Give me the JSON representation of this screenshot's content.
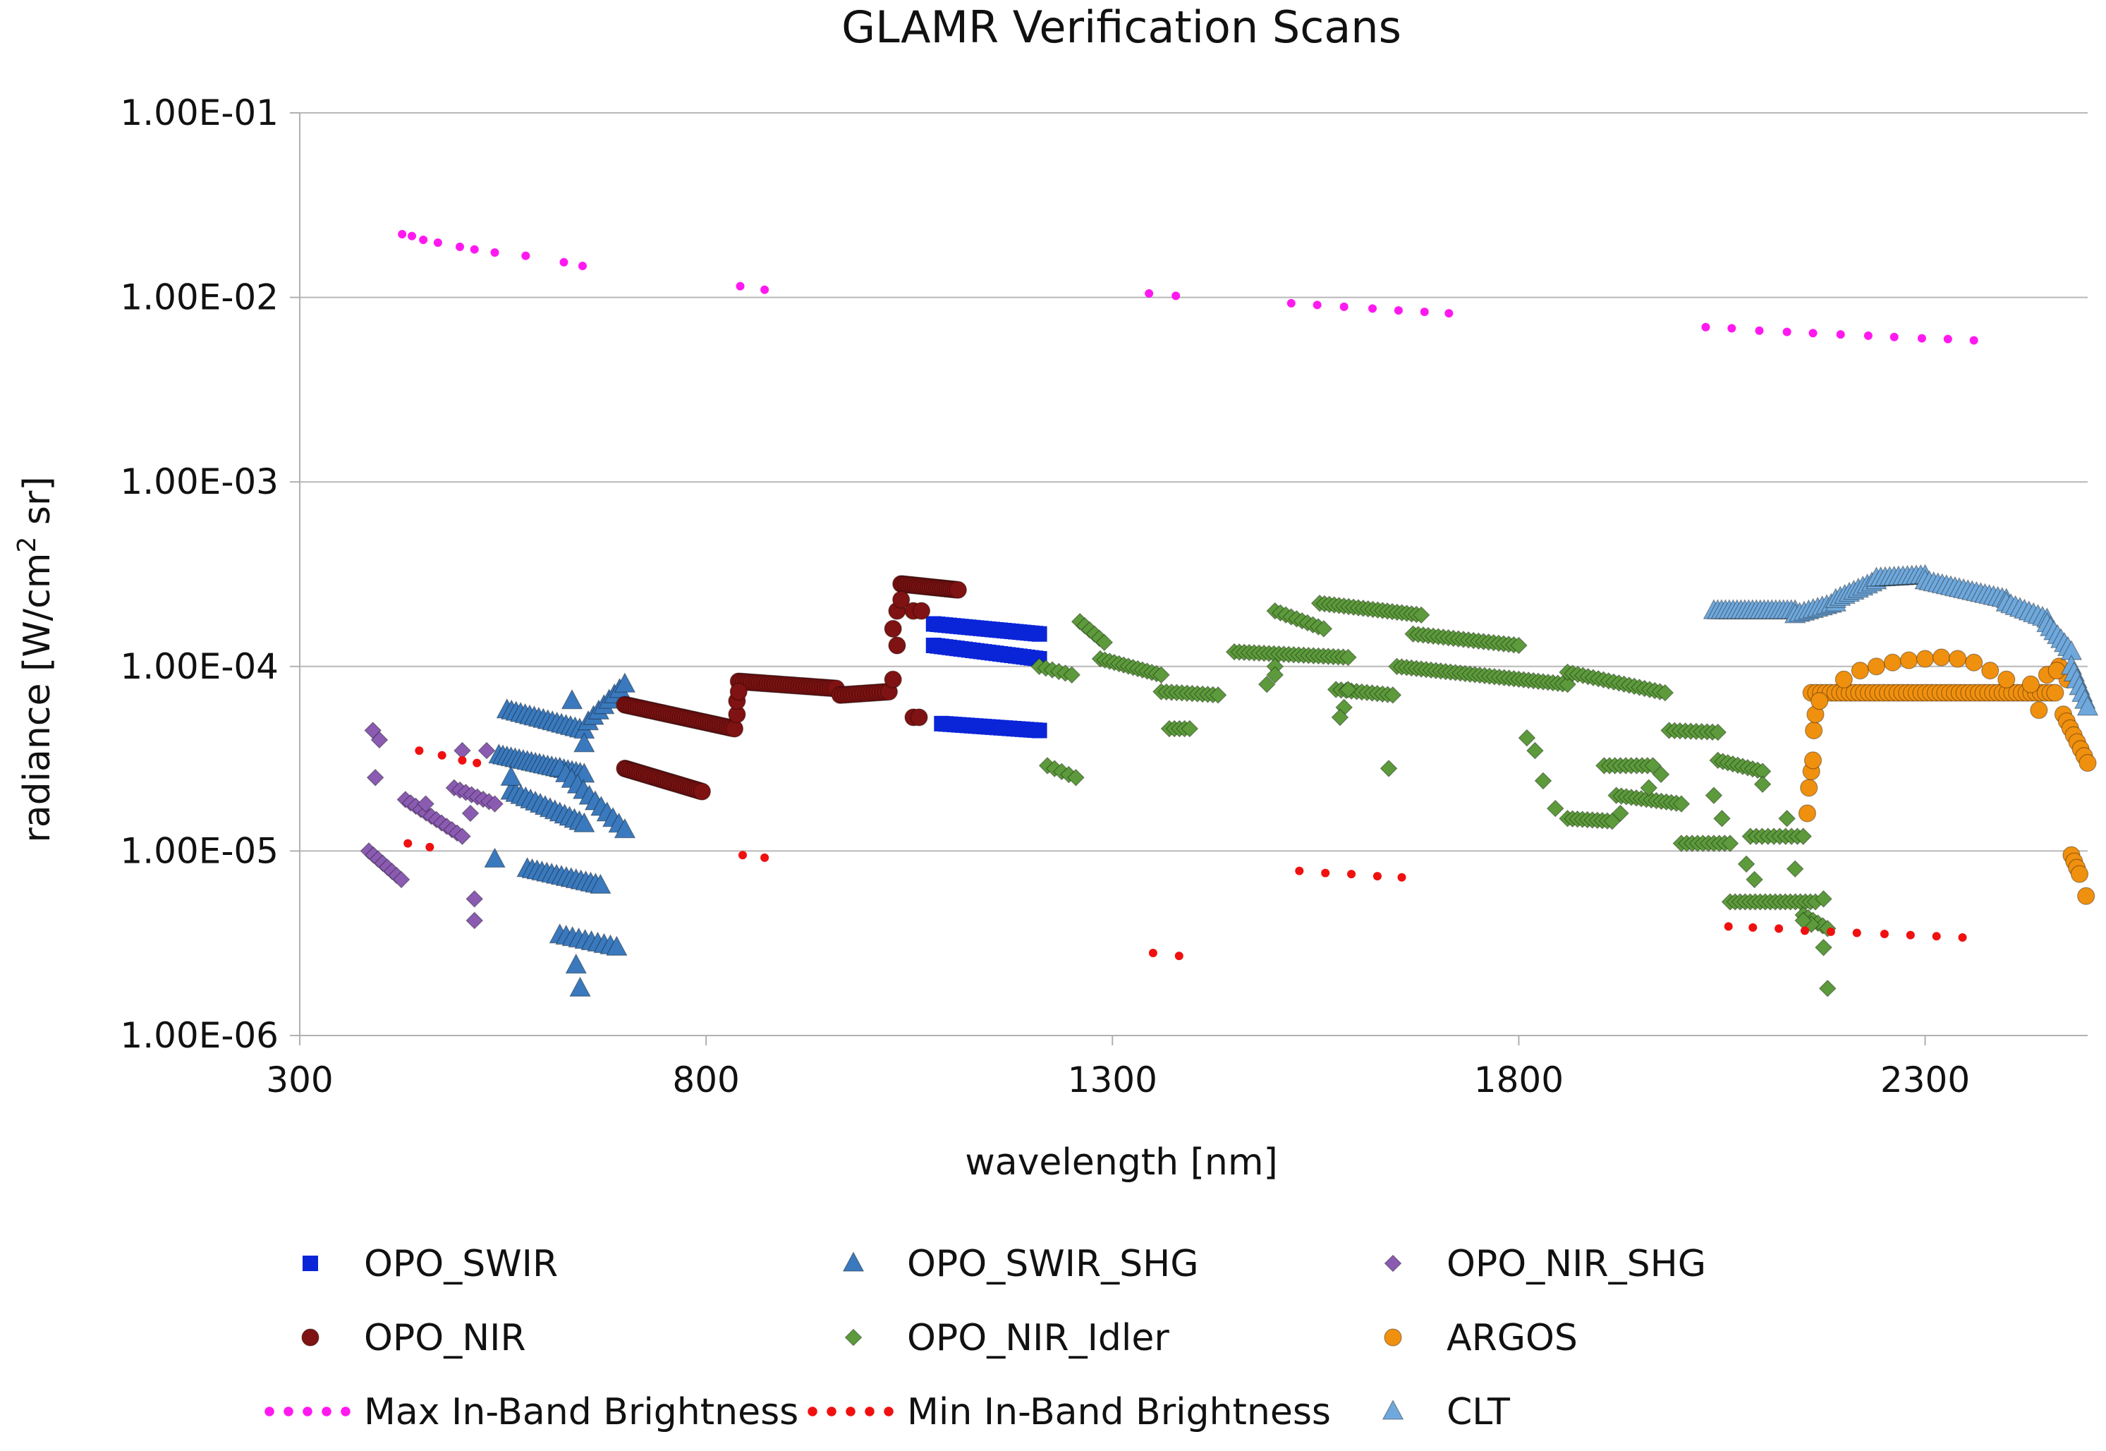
{
  "chart_data": {
    "type": "scatter",
    "title": "GLAMR Verification Scans",
    "xlabel": "wavelength [nm]",
    "ylabel": {
      "main": "radiance [W/cm",
      "sup": "2",
      "tail": " sr]"
    },
    "xlim": [
      300,
      2500
    ],
    "ylim": [
      1e-06,
      0.1
    ],
    "yscale": "log",
    "x_ticks": [
      300,
      800,
      1300,
      1800,
      2300
    ],
    "x_tick_labels": [
      "300",
      "800",
      "1300",
      "1800",
      "2300"
    ],
    "y_ticks": [
      1e-06,
      1e-05,
      0.0001,
      0.001,
      0.01,
      0.1
    ],
    "y_tick_labels": [
      "1.00E-06",
      "1.00E-05",
      "1.00E-04",
      "1.00E-03",
      "1.00E-02",
      "1.00E-01"
    ],
    "grid": "horizontal",
    "legend_position": "bottom",
    "series": [
      {
        "name": "OPO_SWIR",
        "marker": "square",
        "color": "#0a25d8",
        "segments": [
          {
            "x0": 1080,
            "x1": 1210,
            "y0": 0.00017,
            "y1": 0.00015,
            "n": 28
          },
          {
            "x0": 1080,
            "x1": 1210,
            "y0": 0.00013,
            "y1": 0.00011,
            "n": 28
          },
          {
            "x0": 1090,
            "x1": 1210,
            "y0": 4.9e-05,
            "y1": 4.5e-05,
            "n": 24
          }
        ]
      },
      {
        "name": "OPO_SWIR_SHG",
        "marker": "triangle",
        "color": "#3a79bd",
        "segments": [
          {
            "x0": 555,
            "x1": 650,
            "y0": 5.8e-05,
            "y1": 4.5e-05,
            "n": 18
          },
          {
            "x0": 545,
            "x1": 650,
            "y0": 3.3e-05,
            "y1": 2.6e-05,
            "n": 22
          },
          {
            "x0": 560,
            "x1": 650,
            "y0": 2.1e-05,
            "y1": 1.4e-05,
            "n": 16
          },
          {
            "x0": 580,
            "x1": 670,
            "y0": 8e-06,
            "y1": 6.5e-06,
            "n": 16
          },
          {
            "x0": 620,
            "x1": 690,
            "y0": 3.5e-06,
            "y1": 3e-06,
            "n": 10
          },
          {
            "x0": 620,
            "x1": 700,
            "y0": 2.8e-05,
            "y1": 1.3e-05,
            "n": 12
          },
          {
            "x0": 655,
            "x1": 700,
            "y0": 5e-05,
            "y1": 8e-05,
            "n": 8
          }
        ],
        "points": [
          [
            635,
            6.5e-05
          ],
          [
            560,
            2.5e-05
          ],
          [
            540,
            9e-06
          ],
          [
            640,
            2.4e-06
          ],
          [
            645,
            1.8e-06
          ],
          [
            650,
            3.8e-05
          ]
        ]
      },
      {
        "name": "OPO_NIR_SHG",
        "marker": "diamond",
        "color": "#8a5bb1",
        "segments": [
          {
            "x0": 385,
            "x1": 425,
            "y0": 1e-05,
            "y1": 7e-06,
            "n": 8
          },
          {
            "x0": 430,
            "x1": 500,
            "y0": 1.9e-05,
            "y1": 1.2e-05,
            "n": 12
          },
          {
            "x0": 490,
            "x1": 540,
            "y0": 2.2e-05,
            "y1": 1.8e-05,
            "n": 8
          }
        ],
        "points": [
          [
            390,
            4.5e-05
          ],
          [
            398,
            4e-05
          ],
          [
            393,
            2.5e-05
          ],
          [
            500,
            3.5e-05
          ],
          [
            515,
            5.5e-06
          ],
          [
            515,
            4.2e-06
          ],
          [
            530,
            3.5e-05
          ],
          [
            510,
            1.6e-05
          ],
          [
            455,
            1.8e-05
          ]
        ]
      },
      {
        "name": "OPO_NIR",
        "marker": "circle",
        "color": "#7f1212",
        "segments": [
          {
            "x0": 700,
            "x1": 835,
            "y0": 6.2e-05,
            "y1": 4.6e-05,
            "n": 48
          },
          {
            "x0": 700,
            "x1": 795,
            "y0": 2.8e-05,
            "y1": 2.1e-05,
            "n": 36
          },
          {
            "x0": 840,
            "x1": 960,
            "y0": 8.3e-05,
            "y1": 7.6e-05,
            "n": 38
          },
          {
            "x0": 965,
            "x1": 1025,
            "y0": 7e-05,
            "y1": 7.3e-05,
            "n": 18
          },
          {
            "x0": 1040,
            "x1": 1110,
            "y0": 0.00028,
            "y1": 0.00026,
            "n": 28
          }
        ],
        "points": [
          [
            838,
            5.5e-05
          ],
          [
            838,
            6.5e-05
          ],
          [
            840,
            7.3e-05
          ],
          [
            1030,
            8.5e-05
          ],
          [
            1035,
            0.00013
          ],
          [
            1030,
            0.00016
          ],
          [
            1035,
            0.0002
          ],
          [
            1040,
            0.00023
          ],
          [
            1055,
            0.0002
          ],
          [
            1065,
            0.0002
          ],
          [
            1055,
            5.3e-05
          ],
          [
            1062,
            5.3e-05
          ]
        ]
      },
      {
        "name": "OPO_NIR_Idler",
        "marker": "diamond",
        "color": "#5c9a3b",
        "segments": [
          {
            "x0": 1210,
            "x1": 1250,
            "y0": 0.0001,
            "y1": 9e-05,
            "n": 6
          },
          {
            "x0": 1260,
            "x1": 1290,
            "y0": 0.000175,
            "y1": 0.000135,
            "n": 6
          },
          {
            "x0": 1285,
            "x1": 1360,
            "y0": 0.00011,
            "y1": 9e-05,
            "n": 14
          },
          {
            "x0": 1360,
            "x1": 1430,
            "y0": 7.3e-05,
            "y1": 7e-05,
            "n": 12
          },
          {
            "x0": 1450,
            "x1": 1590,
            "y0": 0.00012,
            "y1": 0.000112,
            "n": 24
          },
          {
            "x0": 1500,
            "x1": 1560,
            "y0": 0.0002,
            "y1": 0.00016,
            "n": 10
          },
          {
            "x0": 1555,
            "x1": 1680,
            "y0": 0.00022,
            "y1": 0.00019,
            "n": 22
          },
          {
            "x0": 1670,
            "x1": 1800,
            "y0": 0.00015,
            "y1": 0.00013,
            "n": 22
          },
          {
            "x0": 1650,
            "x1": 1860,
            "y0": 0.0001,
            "y1": 8e-05,
            "n": 36
          },
          {
            "x0": 1860,
            "x1": 1980,
            "y0": 9.3e-05,
            "y1": 7.2e-05,
            "n": 20
          },
          {
            "x0": 1575,
            "x1": 1645,
            "y0": 7.5e-05,
            "y1": 7e-05,
            "n": 12
          },
          {
            "x0": 1985,
            "x1": 2045,
            "y0": 4.5e-05,
            "y1": 4.4e-05,
            "n": 10
          },
          {
            "x0": 2045,
            "x1": 2100,
            "y0": 3.1e-05,
            "y1": 2.7e-05,
            "n": 10
          },
          {
            "x0": 1905,
            "x1": 1965,
            "y0": 2.9e-05,
            "y1": 2.9e-05,
            "n": 10
          },
          {
            "x0": 1920,
            "x1": 2000,
            "y0": 2e-05,
            "y1": 1.8e-05,
            "n": 14
          },
          {
            "x0": 1860,
            "x1": 1915,
            "y0": 1.5e-05,
            "y1": 1.45e-05,
            "n": 10
          },
          {
            "x0": 2000,
            "x1": 2060,
            "y0": 1.1e-05,
            "y1": 1.1e-05,
            "n": 10
          },
          {
            "x0": 2085,
            "x1": 2150,
            "y0": 1.2e-05,
            "y1": 1.2e-05,
            "n": 10
          },
          {
            "x0": 2060,
            "x1": 2165,
            "y0": 5.3e-06,
            "y1": 5.3e-06,
            "n": 18
          },
          {
            "x0": 2150,
            "x1": 2180,
            "y0": 4.5e-06,
            "y1": 3.8e-06,
            "n": 6
          },
          {
            "x0": 1370,
            "x1": 1395,
            "y0": 4.6e-05,
            "y1": 4.6e-05,
            "n": 5
          },
          {
            "x0": 1220,
            "x1": 1255,
            "y0": 2.9e-05,
            "y1": 2.5e-05,
            "n": 5
          }
        ],
        "points": [
          [
            1500,
            0.0001
          ],
          [
            1490,
            8e-05
          ],
          [
            1500,
            9e-05
          ],
          [
            1590,
            7.5e-05
          ],
          [
            1585,
            6e-05
          ],
          [
            1580,
            5.3e-05
          ],
          [
            1640,
            2.8e-05
          ],
          [
            1810,
            4.1e-05
          ],
          [
            1820,
            3.5e-05
          ],
          [
            1830,
            2.4e-05
          ],
          [
            1845,
            1.7e-05
          ],
          [
            1925,
            1.6e-05
          ],
          [
            1960,
            2.2e-05
          ],
          [
            1975,
            2.6e-05
          ],
          [
            2040,
            2e-05
          ],
          [
            2050,
            1.5e-05
          ],
          [
            2100,
            2.3e-05
          ],
          [
            2130,
            1.5e-05
          ],
          [
            2090,
            7e-06
          ],
          [
            2080,
            8.5e-06
          ],
          [
            2140,
            8e-06
          ],
          [
            2160,
            4e-06
          ],
          [
            2175,
            3e-06
          ],
          [
            2180,
            1.8e-06
          ],
          [
            2175,
            5.5e-06
          ],
          [
            2150,
            4.2e-06
          ]
        ]
      },
      {
        "name": "ARGOS",
        "marker": "circle",
        "color": "#f0900f",
        "segments": [
          {
            "x0": 2160,
            "x1": 2460,
            "y0": 7.2e-05,
            "y1": 7.2e-05,
            "n": 52
          },
          {
            "x0": 2470,
            "x1": 2500,
            "y0": 5.5e-05,
            "y1": 3e-05,
            "n": 8
          },
          {
            "x0": 2480,
            "x1": 2490,
            "y0": 9.5e-06,
            "y1": 7.5e-06,
            "n": 4
          }
        ],
        "points": [
          [
            2155,
            1.6e-05
          ],
          [
            2157,
            2.2e-05
          ],
          [
            2160,
            2.7e-05
          ],
          [
            2162,
            3.1e-05
          ],
          [
            2163,
            4.5e-05
          ],
          [
            2165,
            5.5e-05
          ],
          [
            2170,
            6.5e-05
          ],
          [
            2200,
            8.5e-05
          ],
          [
            2220,
            9.5e-05
          ],
          [
            2240,
            0.0001
          ],
          [
            2260,
            0.000105
          ],
          [
            2280,
            0.000108
          ],
          [
            2300,
            0.00011
          ],
          [
            2320,
            0.000112
          ],
          [
            2340,
            0.00011
          ],
          [
            2360,
            0.000105
          ],
          [
            2380,
            9.5e-05
          ],
          [
            2400,
            8.5e-05
          ],
          [
            2430,
            8e-05
          ],
          [
            2450,
            9e-05
          ],
          [
            2465,
            0.0001
          ],
          [
            2475,
            8.5e-05
          ],
          [
            2462,
            9.5e-05
          ],
          [
            2440,
            5.8e-05
          ],
          [
            2498,
            5.7e-06
          ]
        ]
      },
      {
        "name": "Max In-Band Brightness",
        "marker": "dot",
        "color": "#ff19f0",
        "points": [
          [
            426,
            0.022
          ],
          [
            438,
            0.0215
          ],
          [
            452,
            0.0205
          ],
          [
            470,
            0.0198
          ],
          [
            497,
            0.0188
          ],
          [
            515,
            0.0182
          ],
          [
            540,
            0.0175
          ],
          [
            578,
            0.0168
          ],
          [
            625,
            0.0155
          ],
          [
            648,
            0.0148
          ],
          [
            842,
            0.0115
          ],
          [
            872,
            0.011
          ],
          [
            1345,
            0.0105
          ],
          [
            1378,
            0.0102
          ],
          [
            1520,
            0.0093
          ],
          [
            1552,
            0.0091
          ],
          [
            1585,
            0.0089
          ],
          [
            1620,
            0.0087
          ],
          [
            1652,
            0.0085
          ],
          [
            1684,
            0.00835
          ],
          [
            1714,
            0.0082
          ],
          [
            2030,
            0.0069
          ],
          [
            2062,
            0.0068
          ],
          [
            2096,
            0.0066
          ],
          [
            2130,
            0.0065
          ],
          [
            2162,
            0.0064
          ],
          [
            2196,
            0.0063
          ],
          [
            2230,
            0.0062
          ],
          [
            2262,
            0.0061
          ],
          [
            2296,
            0.006
          ],
          [
            2328,
            0.00595
          ],
          [
            2360,
            0.00585
          ]
        ]
      },
      {
        "name": "Min In-Band Brightness",
        "marker": "dot",
        "color": "#f01010",
        "points": [
          [
            433,
            1.1e-05
          ],
          [
            460,
            1.05e-05
          ],
          [
            447,
            3.5e-05
          ],
          [
            475,
            3.3e-05
          ],
          [
            500,
            3.1e-05
          ],
          [
            518,
            3e-05
          ],
          [
            845,
            9.5e-06
          ],
          [
            872,
            9.2e-06
          ],
          [
            1350,
            2.8e-06
          ],
          [
            1382,
            2.7e-06
          ],
          [
            1530,
            7.8e-06
          ],
          [
            1562,
            7.6e-06
          ],
          [
            1594,
            7.5e-06
          ],
          [
            1626,
            7.3e-06
          ],
          [
            1656,
            7.2e-06
          ],
          [
            2058,
            3.9e-06
          ],
          [
            2088,
            3.85e-06
          ],
          [
            2120,
            3.8e-06
          ],
          [
            2152,
            3.7e-06
          ],
          [
            2184,
            3.65e-06
          ],
          [
            2216,
            3.6e-06
          ],
          [
            2250,
            3.55e-06
          ],
          [
            2282,
            3.5e-06
          ],
          [
            2314,
            3.45e-06
          ],
          [
            2346,
            3.4e-06
          ]
        ]
      },
      {
        "name": "CLT",
        "marker": "triangle",
        "color": "#6fa8dc",
        "segments": [
          {
            "x0": 2040,
            "x1": 2140,
            "y0": 0.0002,
            "y1": 0.0002,
            "n": 22
          },
          {
            "x0": 2140,
            "x1": 2190,
            "y0": 0.00019,
            "y1": 0.00022,
            "n": 10
          },
          {
            "x0": 2190,
            "x1": 2240,
            "y0": 0.00023,
            "y1": 0.00029,
            "n": 10
          },
          {
            "x0": 2240,
            "x1": 2300,
            "y0": 0.0003,
            "y1": 0.00031,
            "n": 12
          },
          {
            "x0": 2300,
            "x1": 2400,
            "y0": 0.00029,
            "y1": 0.00023,
            "n": 20
          },
          {
            "x0": 2400,
            "x1": 2450,
            "y0": 0.00022,
            "y1": 0.00018,
            "n": 10
          },
          {
            "x0": 2450,
            "x1": 2480,
            "y0": 0.00017,
            "y1": 0.00012,
            "n": 8
          },
          {
            "x0": 2480,
            "x1": 2500,
            "y0": 0.0001,
            "y1": 6e-05,
            "n": 7
          }
        ]
      }
    ]
  }
}
